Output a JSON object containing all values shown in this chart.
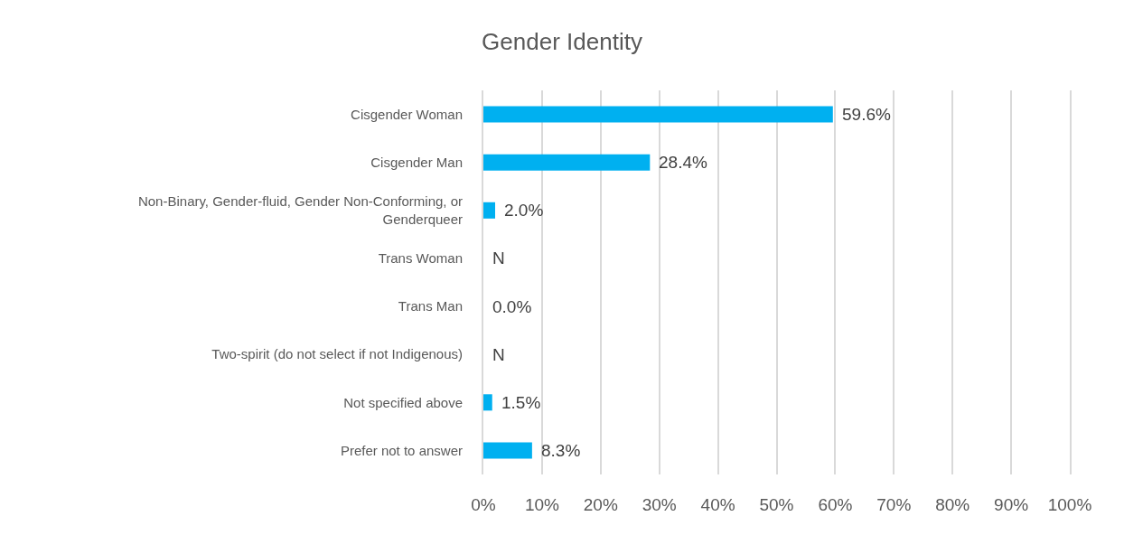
{
  "chart_data": {
    "type": "bar",
    "title": "Gender Identity",
    "orientation": "horizontal",
    "categories": [
      "Cisgender Woman",
      "Cisgender Man",
      "Non-Binary, Gender-fluid, Gender Non-Conforming, or Genderqueer",
      "Trans Woman",
      "Trans Man",
      "Two-spirit (do not select if not Indigenous)",
      "Not specified above",
      "Prefer not to answer"
    ],
    "values": [
      59.6,
      28.4,
      2.0,
      null,
      0.0,
      null,
      1.5,
      8.3
    ],
    "color": "#00b0f0",
    "value_labels": [
      "59.6%",
      "28.4%",
      "2.0%",
      "N",
      "0.0%",
      "N",
      "1.5%",
      "8.3%"
    ],
    "xlim": [
      0,
      100
    ],
    "xticks": [
      {
        "value": 0,
        "label": "0%"
      },
      {
        "value": 10,
        "label": "10%"
      },
      {
        "value": 20,
        "label": "20%"
      },
      {
        "value": 30,
        "label": "30%"
      },
      {
        "value": 40,
        "label": "40%"
      },
      {
        "value": 50,
        "label": "50%"
      },
      {
        "value": 60,
        "label": "60%"
      },
      {
        "value": 70,
        "label": "70%"
      },
      {
        "value": 80,
        "label": "80%"
      },
      {
        "value": 90,
        "label": "90%"
      },
      {
        "value": 100,
        "label": "100%"
      }
    ],
    "grid": "x"
  }
}
